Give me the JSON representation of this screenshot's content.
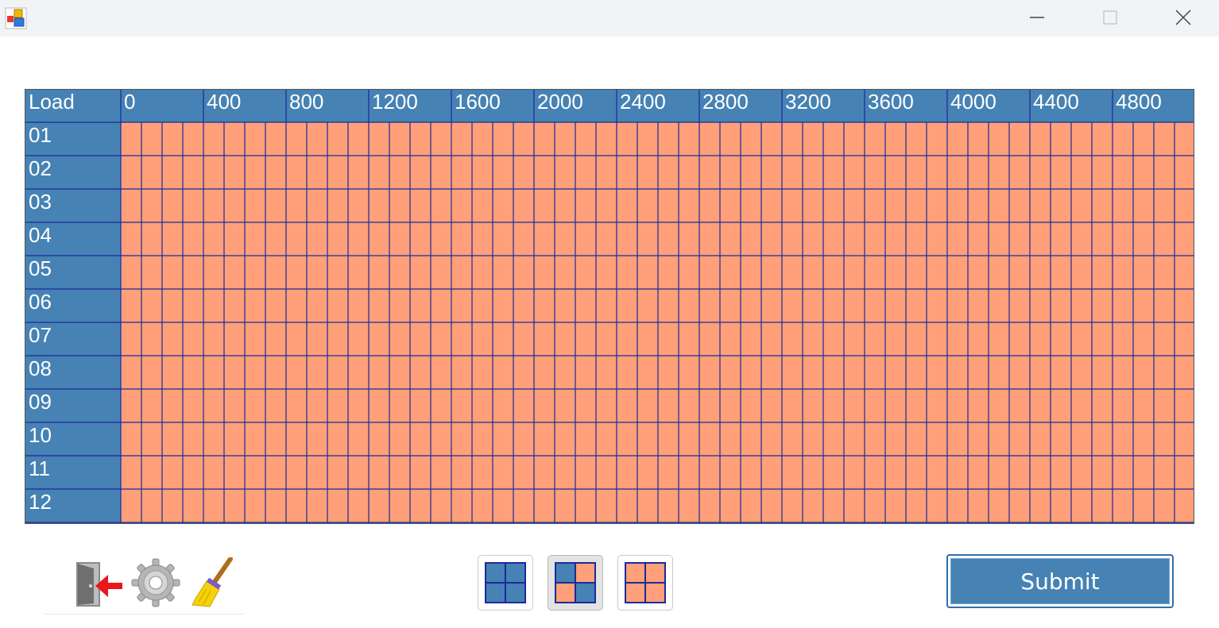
{
  "window": {
    "app_icon": "app-window-icon",
    "controls": [
      "minimize-icon",
      "maximize-icon",
      "close-icon"
    ]
  },
  "grid": {
    "corner_label": "Load",
    "column_headers": [
      "0",
      "400",
      "800",
      "1200",
      "1600",
      "2000",
      "2400",
      "2800",
      "3200",
      "3600",
      "4000",
      "4400",
      "4800"
    ],
    "row_labels": [
      "01",
      "02",
      "03",
      "04",
      "05",
      "06",
      "07",
      "08",
      "09",
      "10",
      "11",
      "12"
    ],
    "subcells_per_column": 4,
    "last_column_subcells": 4,
    "colors": {
      "header_bg": "#4682b4",
      "cell_fill": "#ffa07a",
      "grid_line": "#1c2a9c",
      "label_text": "#ffffff"
    }
  },
  "toolbar": {
    "exit_icon": "exit-door-icon",
    "settings_icon": "gear-icon",
    "clear_icon": "broom-icon"
  },
  "mode_buttons": [
    {
      "name": "all-blue-grid-icon",
      "selected": false
    },
    {
      "name": "mixed-grid-icon",
      "selected": true
    },
    {
      "name": "all-orange-grid-icon",
      "selected": false
    }
  ],
  "actions": {
    "submit_label": "Submit"
  }
}
